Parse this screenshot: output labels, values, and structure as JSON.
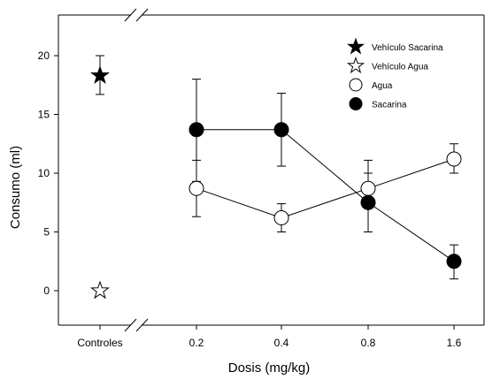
{
  "chart_data": {
    "type": "scatter",
    "xlabel": "Dosis (mg/kg)",
    "ylabel": "Consumo (ml)",
    "ylim": [
      -3,
      23
    ],
    "yticks": [
      0,
      5,
      10,
      15,
      20
    ],
    "categories": [
      "Controles",
      "0.2",
      "0.4",
      "0.8",
      "1.6"
    ],
    "axis_break": "between Controles and 0.2",
    "grid": false,
    "legend_position": "top-right",
    "series": [
      {
        "name": "Vehículo Sacarina",
        "marker": "star-filled",
        "connected": false,
        "points": [
          {
            "x": "Controles",
            "y": 18.3,
            "err_low": 16.7,
            "err_high": 20.0
          }
        ]
      },
      {
        "name": "Vehículo Agua",
        "marker": "star-open",
        "connected": false,
        "points": [
          {
            "x": "Controles",
            "y": 0.0
          }
        ]
      },
      {
        "name": "Agua",
        "marker": "circle-open",
        "connected": true,
        "points": [
          {
            "x": "0.2",
            "y": 8.7,
            "err_low": 6.3,
            "err_high": 11.1
          },
          {
            "x": "0.4",
            "y": 6.2,
            "err_low": 5.0,
            "err_high": 7.4
          },
          {
            "x": "0.8",
            "y": 8.7,
            "err_low": 7.4,
            "err_high": 11.1
          },
          {
            "x": "1.6",
            "y": 11.2,
            "err_low": 10.0,
            "err_high": 12.5
          }
        ]
      },
      {
        "name": "Sacarina",
        "marker": "circle-filled",
        "connected": true,
        "points": [
          {
            "x": "0.2",
            "y": 13.7,
            "err_low": 9.3,
            "err_high": 18.0
          },
          {
            "x": "0.4",
            "y": 13.7,
            "err_low": 10.6,
            "err_high": 16.8
          },
          {
            "x": "0.8",
            "y": 7.5,
            "err_low": 5.0,
            "err_high": 10.0
          },
          {
            "x": "1.6",
            "y": 2.5,
            "err_low": 1.0,
            "err_high": 3.9
          }
        ]
      }
    ]
  }
}
